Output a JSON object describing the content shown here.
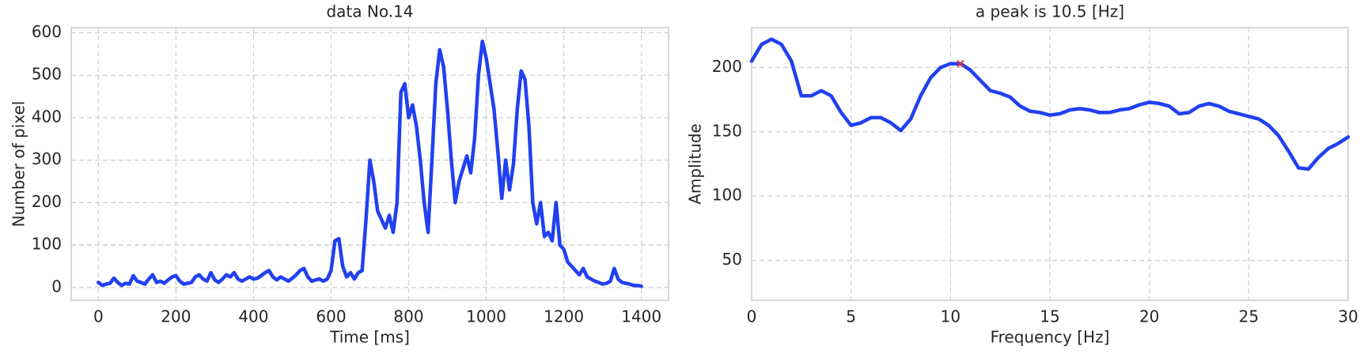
{
  "chart_data": [
    {
      "type": "line",
      "title": "data No.14",
      "xlabel": "Time [ms]",
      "ylabel": "Number of pixel",
      "grid": true,
      "xlim": [
        -70,
        1470
      ],
      "ylim": [
        -30,
        612
      ],
      "xticks": [
        0,
        200,
        400,
        600,
        800,
        1000,
        1200,
        1400
      ],
      "yticks": [
        0,
        100,
        200,
        300,
        400,
        500,
        600
      ],
      "x": [
        0,
        10,
        20,
        30,
        40,
        50,
        60,
        70,
        80,
        90,
        100,
        110,
        120,
        130,
        140,
        150,
        160,
        170,
        180,
        190,
        200,
        210,
        220,
        230,
        240,
        250,
        260,
        270,
        280,
        290,
        300,
        310,
        320,
        330,
        340,
        350,
        360,
        370,
        380,
        390,
        400,
        410,
        420,
        430,
        440,
        450,
        460,
        470,
        480,
        490,
        500,
        510,
        520,
        530,
        540,
        550,
        560,
        570,
        580,
        590,
        600,
        610,
        620,
        630,
        640,
        650,
        660,
        670,
        680,
        690,
        700,
        710,
        720,
        730,
        740,
        750,
        760,
        770,
        780,
        790,
        800,
        810,
        820,
        830,
        840,
        850,
        860,
        870,
        880,
        890,
        900,
        910,
        920,
        930,
        940,
        950,
        960,
        970,
        980,
        990,
        1000,
        1010,
        1020,
        1030,
        1040,
        1050,
        1060,
        1070,
        1080,
        1090,
        1100,
        1110,
        1120,
        1130,
        1140,
        1150,
        1160,
        1170,
        1180,
        1190,
        1200,
        1210,
        1220,
        1230,
        1240,
        1250,
        1260,
        1270,
        1280,
        1290,
        1300,
        1310,
        1320,
        1330,
        1340,
        1350,
        1360,
        1370,
        1380,
        1390,
        1400
      ],
      "series": [
        {
          "color": "#2140f0",
          "values": [
            12,
            5,
            8,
            10,
            22,
            12,
            5,
            10,
            8,
            28,
            15,
            12,
            8,
            20,
            30,
            12,
            15,
            10,
            18,
            25,
            28,
            15,
            8,
            10,
            12,
            25,
            30,
            20,
            15,
            35,
            18,
            12,
            20,
            30,
            25,
            35,
            20,
            15,
            20,
            25,
            20,
            22,
            28,
            35,
            40,
            25,
            18,
            25,
            20,
            15,
            22,
            30,
            40,
            45,
            25,
            15,
            18,
            20,
            15,
            20,
            40,
            110,
            115,
            50,
            25,
            35,
            20,
            35,
            40,
            160,
            300,
            250,
            180,
            160,
            140,
            170,
            130,
            200,
            460,
            480,
            400,
            430,
            380,
            300,
            200,
            130,
            300,
            480,
            560,
            520,
            420,
            300,
            200,
            250,
            280,
            310,
            270,
            350,
            500,
            580,
            540,
            480,
            420,
            320,
            210,
            300,
            230,
            290,
            420,
            510,
            490,
            380,
            200,
            150,
            200,
            120,
            130,
            110,
            200,
            100,
            90,
            60,
            50,
            40,
            30,
            45,
            25,
            20,
            15,
            12,
            8,
            10,
            15,
            45,
            20,
            12,
            10,
            8,
            5,
            5,
            3
          ]
        }
      ]
    },
    {
      "type": "line",
      "title": "a peak is 10.5 [Hz]",
      "xlabel": "Frequency [Hz]",
      "ylabel": "Amplitude",
      "grid": true,
      "xlim": [
        0,
        30
      ],
      "ylim": [
        19,
        231
      ],
      "xticks": [
        0,
        5,
        10,
        15,
        20,
        25,
        30
      ],
      "yticks": [
        50,
        100,
        150,
        200
      ],
      "x": [
        0,
        0.5,
        1,
        1.5,
        2,
        2.5,
        3,
        3.5,
        4,
        4.5,
        5,
        5.5,
        6,
        6.5,
        7,
        7.5,
        8,
        8.5,
        9,
        9.5,
        10,
        10.5,
        11,
        11.5,
        12,
        12.5,
        13,
        13.5,
        14,
        14.5,
        15,
        15.5,
        16,
        16.5,
        17,
        17.5,
        18,
        18.5,
        19,
        19.5,
        20,
        20.5,
        21,
        21.5,
        22,
        22.5,
        23,
        23.5,
        24,
        24.5,
        25,
        25.5,
        26,
        26.5,
        27,
        27.5,
        28,
        28.5,
        29,
        29.5,
        30
      ],
      "series": [
        {
          "color": "#2140f0",
          "values": [
            205,
            218,
            222,
            218,
            205,
            178,
            178,
            182,
            178,
            165,
            155,
            157,
            161,
            161,
            157,
            151,
            160,
            178,
            192,
            200,
            203,
            203,
            198,
            190,
            182,
            180,
            177,
            170,
            166,
            165,
            163,
            164,
            167,
            168,
            167,
            165,
            165,
            167,
            168,
            171,
            173,
            172,
            170,
            164,
            165,
            170,
            172,
            170,
            166,
            164,
            162,
            160,
            155,
            147,
            135,
            122,
            121,
            130,
            137,
            141,
            146
          ]
        }
      ],
      "peak": {
        "x": 10.5,
        "y": 203,
        "color": "#e8303a"
      }
    }
  ]
}
